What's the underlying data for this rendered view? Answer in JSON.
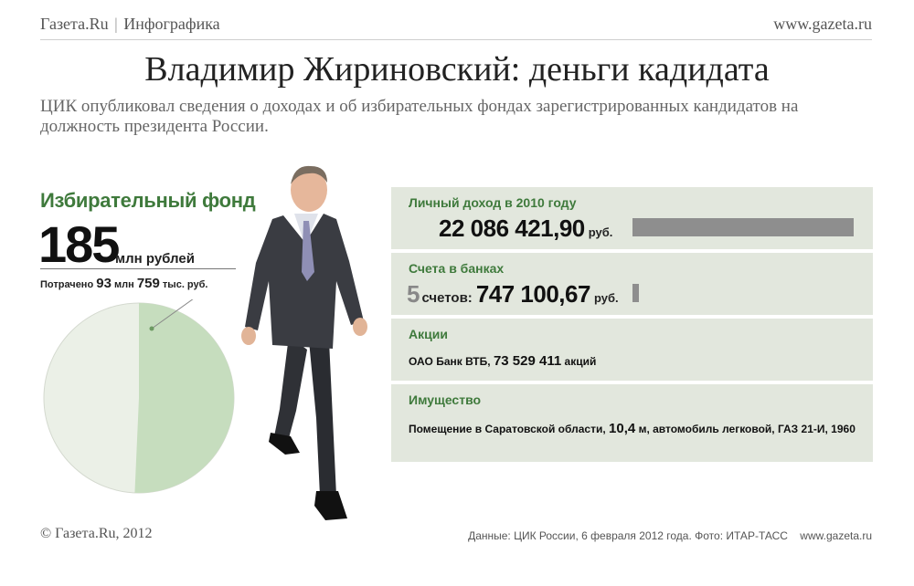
{
  "header": {
    "brand": "Газета.Ru",
    "separator": "|",
    "section": "Инфографика",
    "site": "www.gazeta.ru"
  },
  "title": "Владимир Жириновский: деньги кадидата",
  "subtitle": "ЦИК опубликовал сведения о доходах и об избирательных фондах зарегистрированных кандидатов на должность президента России.",
  "fund": {
    "heading": "Избирательный фонд",
    "value": "185",
    "unit": "млн рублей",
    "spent_prefix": "Потрачено",
    "spent_mln": "93",
    "spent_mln_unit": "млн",
    "spent_thou": "759",
    "spent_thou_unit": "тыс. руб.",
    "pie": {
      "total": 185,
      "spent_fraction": 0.507,
      "color_spent": "#c6ddbe",
      "color_rest": "#ebf0e7"
    }
  },
  "panels": {
    "income": {
      "label": "Личный доход в 2010 году",
      "value": "22 086 421,90",
      "currency": "руб.",
      "bar_fraction": 1.0
    },
    "bank": {
      "label": "Счета в банках",
      "count": "5",
      "count_unit": "счетов:",
      "value": "747 100,67",
      "currency": "руб.",
      "bar_fraction": 0.03
    },
    "shares": {
      "label": "Акции",
      "prefix": "ОАО Банк ВТБ,",
      "value": "73 529 411",
      "unit": "акций"
    },
    "property": {
      "label": "Имущество",
      "prefix": "Помещение в Саратовской области,",
      "value": "10,4",
      "suffix": "м, автомобиль легковой, ГАЗ 21-И, 1960"
    }
  },
  "colors": {
    "accent_green": "#3f7a3c",
    "panel_bg": "#e2e7dd",
    "bar_gray": "#8e8e8e"
  },
  "footer": {
    "copyright": "© Газета.Ru, 2012",
    "source": "Данные: ЦИК России, 6 февраля 2012 года. Фото: ИТАР-ТАСС",
    "site": "www.gazeta.ru"
  }
}
